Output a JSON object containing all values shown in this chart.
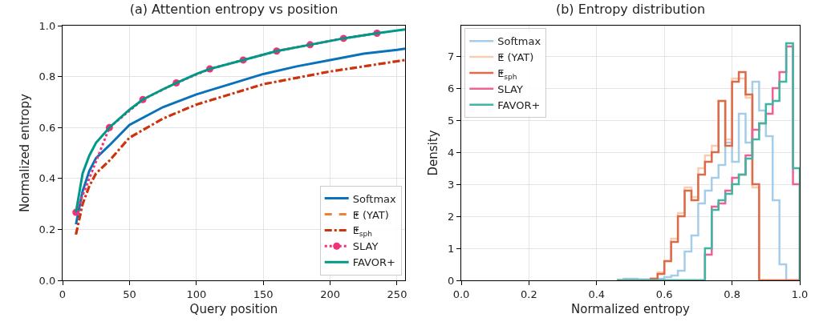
{
  "chart_data": [
    {
      "type": "line",
      "title": "(a) Attention entropy vs position",
      "xlabel": "Query position",
      "ylabel": "Normalized entropy",
      "xlim": [
        0,
        256
      ],
      "xticks": [
        0,
        50,
        100,
        150,
        200,
        250
      ],
      "ylim": [
        0,
        1
      ],
      "yticks": [
        {
          "value": 0,
          "label": "0.0"
        },
        {
          "value": 0.2,
          "label": "0.2"
        },
        {
          "value": 0.4,
          "label": "0.4"
        },
        {
          "value": 0.6,
          "label": "0.6"
        },
        {
          "value": 0.8,
          "label": "0.8"
        },
        {
          "value": 1,
          "label": "1.0"
        }
      ],
      "grid": true,
      "legend": "bottom right",
      "series": [
        {
          "name": "Softmax",
          "color": "#0a72ba",
          "line_style": "solid",
          "marker": "none",
          "x": [
            10,
            15,
            20,
            25,
            35,
            50,
            75,
            100,
            125,
            150,
            175,
            200,
            225,
            250,
            256
          ],
          "values": [
            0.22,
            0.35,
            0.43,
            0.48,
            0.53,
            0.61,
            0.68,
            0.73,
            0.77,
            0.81,
            0.84,
            0.865,
            0.89,
            0.905,
            0.91
          ]
        },
        {
          "name": "ⵟ (YAT)",
          "color": "#f07f3c",
          "line_style": "dashed",
          "marker": "none",
          "x": [
            10,
            15,
            20,
            25,
            35,
            50,
            75,
            100,
            125,
            150,
            175,
            200,
            225,
            250,
            256
          ],
          "values": [
            0.18,
            0.3,
            0.37,
            0.42,
            0.47,
            0.56,
            0.635,
            0.69,
            0.73,
            0.77,
            0.795,
            0.82,
            0.84,
            0.86,
            0.865
          ]
        },
        {
          "name": "ⵟ$_{sph}$",
          "color": "#cc3311",
          "line_style": "dashdot",
          "marker": "none",
          "x": [
            10,
            15,
            20,
            25,
            35,
            50,
            75,
            100,
            125,
            150,
            175,
            200,
            225,
            250,
            256
          ],
          "values": [
            0.18,
            0.3,
            0.37,
            0.42,
            0.47,
            0.56,
            0.635,
            0.69,
            0.73,
            0.77,
            0.795,
            0.82,
            0.84,
            0.86,
            0.865
          ]
        },
        {
          "name": "SLAY",
          "color": "#ee3377",
          "line_style": "dotted",
          "marker": "circle",
          "x": [
            10,
            35,
            60,
            85,
            110,
            135,
            160,
            185,
            210,
            235
          ],
          "values": [
            0.267,
            0.6,
            0.71,
            0.775,
            0.83,
            0.865,
            0.9,
            0.925,
            0.95,
            0.97
          ]
        },
        {
          "name": "FAVOR+",
          "color": "#009988",
          "line_style": "solid",
          "marker": "none",
          "x": [
            10,
            15,
            20,
            25,
            35,
            50,
            60,
            75,
            85,
            100,
            110,
            135,
            160,
            185,
            210,
            235,
            256
          ],
          "values": [
            0.267,
            0.42,
            0.49,
            0.54,
            0.6,
            0.67,
            0.71,
            0.75,
            0.775,
            0.81,
            0.83,
            0.865,
            0.9,
            0.925,
            0.95,
            0.97,
            0.985
          ]
        }
      ]
    },
    {
      "type": "histogram",
      "title": "(b) Entropy distribution",
      "xlabel": "Normalized entropy",
      "ylabel": "Density",
      "xlim": [
        0,
        1
      ],
      "xticks": [
        {
          "value": 0,
          "label": "0.0"
        },
        {
          "value": 0.2,
          "label": "0.2"
        },
        {
          "value": 0.4,
          "label": "0.4"
        },
        {
          "value": 0.6,
          "label": "0.6"
        },
        {
          "value": 0.8,
          "label": "0.8"
        },
        {
          "value": 1,
          "label": "1.0"
        }
      ],
      "ylim": [
        0,
        7.95
      ],
      "yticks": [
        0,
        1,
        2,
        3,
        4,
        5,
        6,
        7
      ],
      "grid": true,
      "legend": "top left",
      "bins": [
        0.46,
        0.48,
        0.5,
        0.52,
        0.54,
        0.56,
        0.58,
        0.6,
        0.62,
        0.64,
        0.66,
        0.68,
        0.7,
        0.72,
        0.74,
        0.76,
        0.78,
        0.8,
        0.82,
        0.84,
        0.86,
        0.88,
        0.9,
        0.92,
        0.94,
        0.96,
        0.98,
        1.0
      ],
      "series": [
        {
          "name": "Softmax",
          "color": "#a6cde8",
          "values": [
            0,
            0.05,
            0.05,
            0.03,
            0.03,
            0.05,
            0.05,
            0.1,
            0.15,
            0.3,
            0.9,
            1.4,
            2.4,
            2.8,
            3.2,
            3.6,
            4.3,
            3.7,
            5.2,
            4.3,
            6.2,
            5.3,
            4.5,
            2.5,
            0.5,
            0,
            0
          ]
        },
        {
          "name": "ⵟ (YAT)",
          "color": "#f9cdb2",
          "values": [
            0,
            0,
            0,
            0,
            0,
            0.05,
            0.25,
            0.6,
            1.3,
            2.1,
            2.9,
            2.6,
            3.5,
            3.9,
            4.2,
            5.6,
            4.4,
            6.3,
            6.3,
            5.7,
            2.9,
            0,
            0,
            0,
            0,
            0,
            0
          ]
        },
        {
          "name": "ⵟ$_{sph}$",
          "color": "#dd6a48",
          "values": [
            0,
            0,
            0,
            0,
            0,
            0.05,
            0.2,
            0.6,
            1.2,
            2.0,
            2.8,
            2.5,
            3.3,
            3.7,
            4.0,
            5.6,
            4.2,
            6.2,
            6.5,
            5.8,
            3.0,
            0,
            0,
            0,
            0,
            0,
            0
          ]
        },
        {
          "name": "SLAY",
          "color": "#ee6194",
          "values": [
            0,
            0,
            0,
            0,
            0,
            0,
            0,
            0,
            0,
            0,
            0,
            0,
            0,
            0.8,
            2.3,
            2.4,
            2.8,
            3.2,
            3.3,
            3.9,
            4.7,
            4.9,
            5.2,
            6.0,
            6.5,
            7.3,
            3.0
          ]
        },
        {
          "name": "FAVOR+",
          "color": "#3fb5a3",
          "values": [
            0,
            0,
            0,
            0,
            0,
            0,
            0,
            0,
            0,
            0,
            0,
            0,
            0,
            1.0,
            2.2,
            2.5,
            2.7,
            3.0,
            3.3,
            3.8,
            4.4,
            4.9,
            5.5,
            5.6,
            6.2,
            7.4,
            3.5
          ]
        }
      ]
    }
  ]
}
